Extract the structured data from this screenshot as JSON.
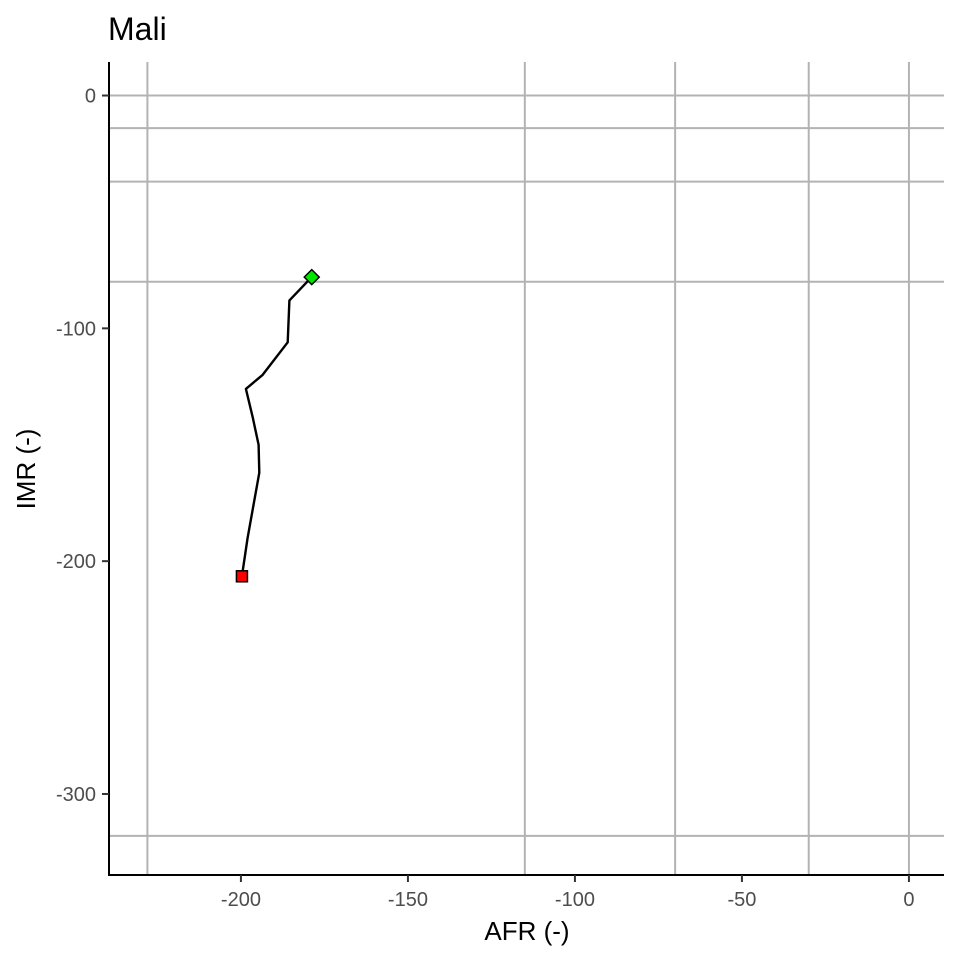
{
  "chart_data": {
    "type": "line",
    "title": "Mali",
    "xlabel": "AFR (-)",
    "ylabel": "IMR (-)",
    "xlim": [
      -239.5,
      10.5
    ],
    "ylim": [
      -334.8,
      14.4
    ],
    "x_ticks": [
      -200,
      -150,
      -100,
      -50,
      0
    ],
    "y_ticks": [
      0,
      -100,
      -200,
      -300
    ],
    "x_tick_labels": [
      "-200",
      "-150",
      "-100",
      "-50",
      "0"
    ],
    "y_tick_labels": [
      "0",
      "-100",
      "-200",
      "-300"
    ],
    "grid_x": [
      -228,
      -115,
      -70,
      -30,
      0
    ],
    "grid_y": [
      0,
      -14,
      -37,
      -80,
      -318
    ],
    "grid": true,
    "series": [
      {
        "points": [
          {
            "x": -199.7,
            "y": -206.5
          },
          {
            "x": -198.0,
            "y": -190.0
          },
          {
            "x": -194.5,
            "y": -162.0
          },
          {
            "x": -194.7,
            "y": -150.0
          },
          {
            "x": -196.5,
            "y": -138.0
          },
          {
            "x": -198.5,
            "y": -126.0
          },
          {
            "x": -193.5,
            "y": -120.0
          },
          {
            "x": -186.0,
            "y": -106.0
          },
          {
            "x": -185.5,
            "y": -88.0
          },
          {
            "x": -178.8,
            "y": -78.0
          }
        ],
        "color": "#000000"
      }
    ],
    "markers": [
      {
        "type": "square",
        "x": -199.7,
        "y": -206.5,
        "color": "#ff0000"
      },
      {
        "type": "diamond",
        "x": -178.8,
        "y": -78.0,
        "color": "#00e600"
      }
    ]
  }
}
